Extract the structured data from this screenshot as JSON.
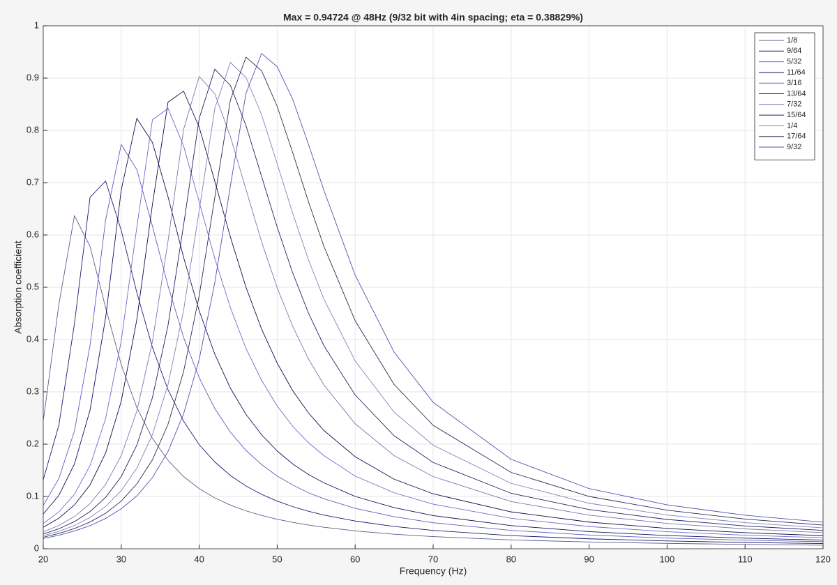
{
  "chart_data": {
    "type": "line",
    "title": "Max = 0.94724 @ 48Hz (9/32 bit with 4in spacing; eta = 0.38829%)",
    "x_label": "Frequency (Hz)",
    "y_label": "Absorption coefficient",
    "x": [
      20,
      22,
      24,
      26,
      28,
      30,
      32,
      34,
      36,
      38,
      40,
      42,
      44,
      46,
      48,
      50,
      52,
      54,
      56,
      60,
      65,
      70,
      80,
      90,
      100,
      110,
      120
    ],
    "series": [
      {
        "name": "1/8",
        "color": "#5a5a8a",
        "values": [
          0.244,
          0.467,
          0.637,
          0.578,
          0.461,
          0.352,
          0.27,
          0.211,
          0.169,
          0.138,
          0.115,
          0.0972,
          0.0834,
          0.0725,
          0.0637,
          0.0565,
          0.0504,
          0.0454,
          0.0411,
          0.0342,
          0.0278,
          0.0232,
          0.0169,
          0.0129,
          0.0102,
          0.0083,
          0.0068
        ]
      },
      {
        "name": "9/64",
        "color": "#1a1a70",
        "values": [
          0.132,
          0.236,
          0.43,
          0.672,
          0.703,
          0.609,
          0.49,
          0.385,
          0.304,
          0.244,
          0.199,
          0.166,
          0.14,
          0.12,
          0.104,
          0.0911,
          0.0805,
          0.0718,
          0.0645,
          0.053,
          0.0426,
          0.0351,
          0.0251,
          0.019,
          0.0149,
          0.012,
          0.00994
        ]
      },
      {
        "name": "5/32",
        "color": "#5c5cc0",
        "values": [
          0.0828,
          0.134,
          0.225,
          0.389,
          0.629,
          0.773,
          0.725,
          0.617,
          0.503,
          0.404,
          0.327,
          0.268,
          0.223,
          0.188,
          0.161,
          0.139,
          0.122,
          0.107,
          0.0956,
          0.0773,
          0.0612,
          0.0498,
          0.0351,
          0.0263,
          0.0204,
          0.0164,
          0.0135
        ]
      },
      {
        "name": "11/64",
        "color": "#10105a",
        "values": [
          0.0663,
          0.102,
          0.162,
          0.265,
          0.442,
          0.686,
          0.823,
          0.777,
          0.673,
          0.557,
          0.455,
          0.372,
          0.307,
          0.257,
          0.218,
          0.187,
          0.162,
          0.142,
          0.126,
          0.1,
          0.0786,
          0.0634,
          0.0442,
          0.0327,
          0.0253,
          0.0203,
          0.0166
        ]
      },
      {
        "name": "3/16",
        "color": "#6a6ad0",
        "values": [
          0.0483,
          0.0704,
          0.104,
          0.159,
          0.249,
          0.397,
          0.615,
          0.82,
          0.842,
          0.77,
          0.663,
          0.555,
          0.461,
          0.383,
          0.322,
          0.273,
          0.234,
          0.203,
          0.178,
          0.139,
          0.107,
          0.0853,
          0.0582,
          0.0425,
          0.0326,
          0.0259,
          0.0211
        ]
      },
      {
        "name": "13/64",
        "color": "#0c0c48",
        "values": [
          0.041,
          0.0583,
          0.0837,
          0.122,
          0.183,
          0.282,
          0.438,
          0.658,
          0.854,
          0.875,
          0.806,
          0.703,
          0.596,
          0.5,
          0.42,
          0.355,
          0.302,
          0.26,
          0.226,
          0.176,
          0.133,
          0.105,
          0.0705,
          0.051,
          0.0389,
          0.0307,
          0.025
        ]
      },
      {
        "name": "7/32",
        "color": "#7878b0",
        "values": [
          0.0323,
          0.0445,
          0.0616,
          0.0862,
          0.123,
          0.178,
          0.263,
          0.396,
          0.588,
          0.802,
          0.903,
          0.87,
          0.788,
          0.687,
          0.587,
          0.499,
          0.425,
          0.363,
          0.313,
          0.239,
          0.178,
          0.138,
          0.0903,
          0.0643,
          0.0484,
          0.038,
          0.0307
        ]
      },
      {
        "name": "15/64",
        "color": "#202064",
        "values": [
          0.0281,
          0.0382,
          0.0519,
          0.071,
          0.0983,
          0.138,
          0.198,
          0.289,
          0.427,
          0.619,
          0.823,
          0.917,
          0.886,
          0.809,
          0.712,
          0.615,
          0.527,
          0.451,
          0.388,
          0.294,
          0.216,
          0.165,
          0.106,
          0.0749,
          0.056,
          0.0436,
          0.0351
        ]
      },
      {
        "name": "1/4",
        "color": "#8080b8",
        "values": [
          0.0248,
          0.0332,
          0.0445,
          0.0598,
          0.0809,
          0.111,
          0.154,
          0.218,
          0.314,
          0.456,
          0.647,
          0.842,
          0.93,
          0.901,
          0.83,
          0.736,
          0.641,
          0.553,
          0.477,
          0.359,
          0.261,
          0.198,
          0.125,
          0.087,
          0.0644,
          0.0499,
          0.0399
        ]
      },
      {
        "name": "17/64",
        "color": "#2a2a50",
        "values": [
          0.022,
          0.0292,
          0.0386,
          0.0511,
          0.0679,
          0.0911,
          0.124,
          0.17,
          0.238,
          0.339,
          0.484,
          0.672,
          0.858,
          0.94,
          0.914,
          0.846,
          0.757,
          0.664,
          0.578,
          0.436,
          0.314,
          0.236,
          0.146,
          0.1,
          0.0737,
          0.0567,
          0.0452
        ]
      },
      {
        "name": "9/32",
        "color": "#5050b0",
        "values": [
          0.0196,
          0.0258,
          0.0339,
          0.0442,
          0.0579,
          0.0763,
          0.101,
          0.136,
          0.186,
          0.258,
          0.362,
          0.509,
          0.694,
          0.871,
          0.947,
          0.922,
          0.859,
          0.774,
          0.685,
          0.523,
          0.376,
          0.28,
          0.171,
          0.115,
          0.0839,
          0.0641,
          0.0508
        ]
      }
    ],
    "xlim": [
      20,
      120
    ],
    "xticks": [
      20,
      30,
      40,
      50,
      60,
      70,
      80,
      90,
      100,
      110,
      120
    ],
    "ylim": [
      0,
      1
    ],
    "yticks": [
      0,
      0.1,
      0.2,
      0.3,
      0.4,
      0.5,
      0.6,
      0.7,
      0.8,
      0.9,
      1
    ],
    "grid": true,
    "legend": "upper right"
  }
}
